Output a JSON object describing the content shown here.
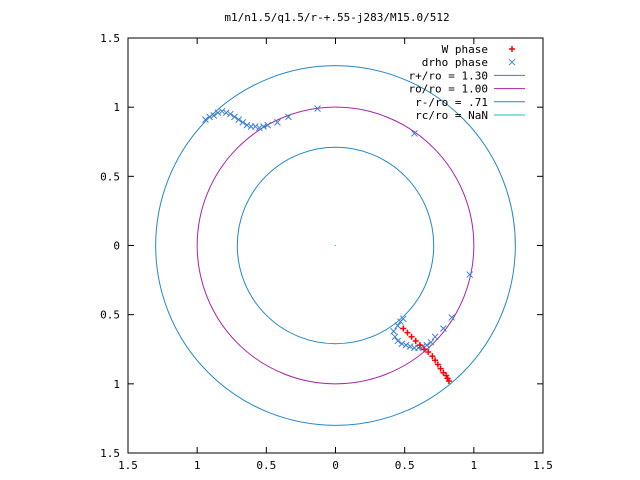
{
  "chart_data": {
    "type": "scatter",
    "title": "m1/n1.5/q1.5/r-+.55-j283/M15.0/512",
    "xlim": [
      -1.5,
      1.5
    ],
    "ylim": [
      -1.5,
      1.5
    ],
    "x_tick_labels": [
      "1.5",
      "1",
      "0.5",
      "0",
      "0.5",
      "1",
      "1.5"
    ],
    "y_tick_labels": [
      "1.5",
      "1",
      "0.5",
      "0",
      "0.5",
      "1",
      "1.5"
    ],
    "x_ticks": [
      -1.5,
      -1,
      -0.5,
      0,
      0.5,
      1,
      1.5
    ],
    "y_ticks": [
      1.5,
      1,
      0.5,
      0,
      -0.5,
      -1,
      -1.5
    ],
    "grid": false,
    "legend_position": "top-right",
    "colors": {
      "w_phase": "#ff0000",
      "drho_phase": "#3a7fd5",
      "r_plus": "#2288cc",
      "ro": "#aa22aa",
      "r_minus": "#2288cc",
      "rc": "#22bbbb",
      "frame": "#000000"
    },
    "series": [
      {
        "name": "W phase",
        "marker": "plus",
        "x": [
          0.49,
          0.52,
          0.55,
          0.58,
          0.61,
          0.64,
          0.67,
          0.7,
          0.72,
          0.74,
          0.76,
          0.78,
          0.8,
          0.81,
          0.82
        ],
        "y": [
          -0.6,
          -0.63,
          -0.66,
          -0.69,
          -0.72,
          -0.75,
          -0.77,
          -0.8,
          -0.83,
          -0.86,
          -0.89,
          -0.92,
          -0.94,
          -0.96,
          -0.98
        ]
      },
      {
        "name": "drho phase",
        "marker": "cross",
        "x": [
          -0.94,
          -0.91,
          -0.88,
          -0.85,
          -0.82,
          -0.79,
          -0.76,
          -0.73,
          -0.7,
          -0.67,
          -0.64,
          -0.61,
          -0.58,
          -0.55,
          -0.52,
          -0.49,
          -0.42,
          -0.34,
          -0.13,
          0.57,
          0.97,
          0.84,
          0.78,
          0.72,
          0.69,
          0.66,
          0.63,
          0.6,
          0.57,
          0.54,
          0.51,
          0.48,
          0.45,
          0.43,
          0.42,
          0.45,
          0.47,
          0.49
        ],
        "y": [
          0.91,
          0.93,
          0.94,
          0.96,
          0.97,
          0.96,
          0.95,
          0.93,
          0.91,
          0.89,
          0.87,
          0.86,
          0.86,
          0.85,
          0.86,
          0.87,
          0.89,
          0.93,
          0.99,
          0.81,
          -0.21,
          -0.52,
          -0.6,
          -0.66,
          -0.7,
          -0.72,
          -0.73,
          -0.74,
          -0.74,
          -0.73,
          -0.72,
          -0.71,
          -0.69,
          -0.66,
          -0.62,
          -0.58,
          -0.55,
          -0.53
        ]
      },
      {
        "name": "r+/ro = 1.30",
        "type": "circle",
        "radius": 1.3
      },
      {
        "name": "ro/ro = 1.00",
        "type": "circle",
        "radius": 1.0
      },
      {
        "name": "r-/ro = .71",
        "type": "circle",
        "radius": 0.71
      },
      {
        "name": "rc/ro = NaN",
        "type": "circle",
        "radius": null
      }
    ]
  }
}
